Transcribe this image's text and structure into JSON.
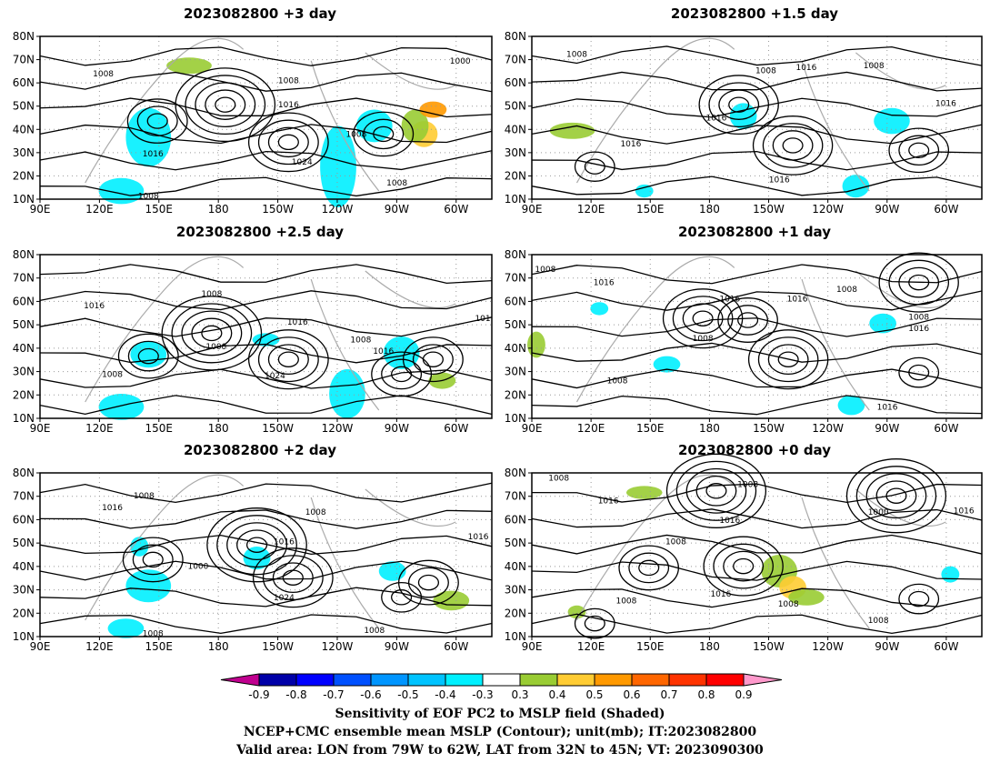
{
  "panels": [
    {
      "title": "2023082800 +3 day",
      "contour_labels": [
        "1008",
        "1008",
        "1016",
        "1016",
        "1024",
        "1008",
        "1008",
        "1000",
        "1008"
      ]
    },
    {
      "title": "2023082800 +1.5 day",
      "contour_labels": [
        "1008",
        "1008",
        "1016",
        "1008",
        "1016",
        "1016",
        "1016",
        "1016"
      ]
    },
    {
      "title": "2023082800 +2.5 day",
      "contour_labels": [
        "1016",
        "1008",
        "1008",
        "1000",
        "1016",
        "1024",
        "1008",
        "1016",
        "101"
      ]
    },
    {
      "title": "2023082800 +1 day",
      "contour_labels": [
        "1008",
        "1016",
        "1016",
        "1016",
        "1008",
        "1016",
        "1008",
        "1008",
        "1016",
        "1008"
      ]
    },
    {
      "title": "2023082800 +2 day",
      "contour_labels": [
        "1008",
        "1016",
        "1008",
        "1000",
        "1016",
        "1024",
        "1008",
        "1008",
        "1016"
      ]
    },
    {
      "title": "2023082800 +0 day",
      "contour_labels": [
        "1008",
        "1016",
        "1008",
        "1008",
        "1016",
        "1016",
        "1008",
        "1008",
        "1000",
        "1016",
        "1008"
      ]
    }
  ],
  "axes": {
    "x_ticks": [
      "90E",
      "120E",
      "150E",
      "180",
      "150W",
      "120W",
      "90W",
      "60W"
    ],
    "y_ticks": [
      "80N",
      "70N",
      "60N",
      "50N",
      "40N",
      "30N",
      "20N",
      "10N"
    ]
  },
  "colorbar": {
    "ticks": [
      "-0.9",
      "-0.8",
      "-0.7",
      "-0.6",
      "-0.5",
      "-0.4",
      "-0.3",
      "0.3",
      "0.4",
      "0.5",
      "0.6",
      "0.7",
      "0.8",
      "0.9"
    ],
    "colors": [
      "#c0008f",
      "#0000a8",
      "#0000ff",
      "#0050ff",
      "#0095ff",
      "#00c3ff",
      "#00f0ff",
      "#ffffff",
      "#99cc33",
      "#ffcc33",
      "#ff9900",
      "#ff6600",
      "#ff3300",
      "#ff0000",
      "#ff99cc"
    ]
  },
  "footer": {
    "line1": "Sensitivity of EOF PC2 to MSLP field (Shaded)",
    "line2": "NCEP+CMC ensemble mean MSLP (Contour); unit(mb); IT:2023082800",
    "line3": "Valid area: LON from 79W to 62W, LAT from 32N to 45N; VT: 2023090300"
  },
  "chart_data": {
    "type": "heatmap",
    "colorbar_levels": [
      -0.9,
      -0.8,
      -0.7,
      -0.6,
      -0.5,
      -0.4,
      -0.3,
      0.3,
      0.4,
      0.5,
      0.6,
      0.7,
      0.8,
      0.9
    ],
    "x_range": [
      "90E",
      "50W"
    ],
    "y_range": [
      "10N",
      "80N"
    ],
    "panels": [
      "2023082800 +3 day",
      "2023082800 +1.5 day",
      "2023082800 +2.5 day",
      "2023082800 +1 day",
      "2023082800 +2 day",
      "2023082800 +0 day"
    ]
  }
}
